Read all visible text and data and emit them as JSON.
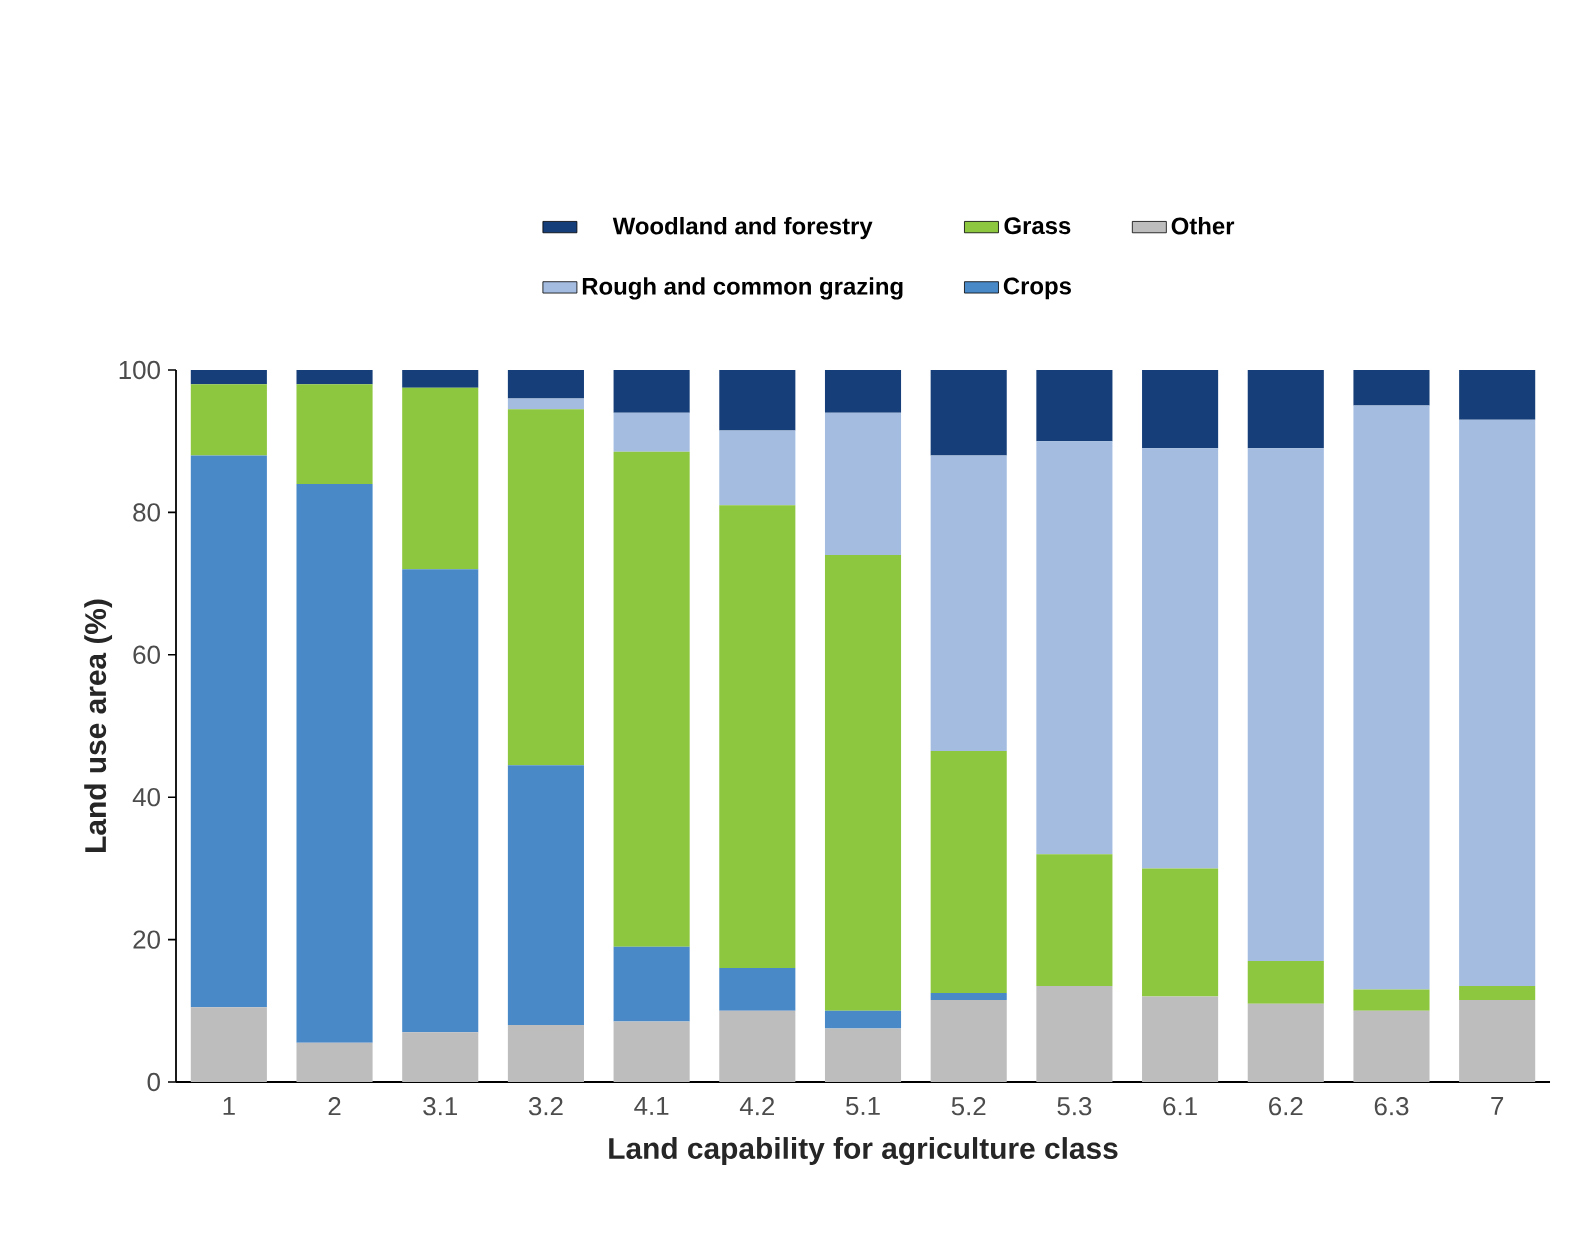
{
  "chart_data": {
    "type": "bar",
    "stacked": true,
    "xlabel": "Land capability for agriculture class",
    "ylabel": "Land use area (%)",
    "categories": [
      "1",
      "2",
      "3.1",
      "3.2",
      "4.1",
      "4.2",
      "5.1",
      "5.2",
      "5.3",
      "6.1",
      "6.2",
      "6.3",
      "7"
    ],
    "series": [
      {
        "name": "Other",
        "color": "#bdbdbd",
        "values": [
          10.5,
          5.5,
          7,
          8,
          8.5,
          10,
          7.5,
          11.5,
          13.5,
          12,
          11,
          10,
          11.5
        ]
      },
      {
        "name": "Crops",
        "color": "#4a89c8",
        "values": [
          77.5,
          78.5,
          65,
          36.5,
          10.5,
          6,
          2.5,
          1,
          0,
          0,
          0,
          0,
          0
        ]
      },
      {
        "name": "Grass",
        "color": "#8dc63f",
        "values": [
          10,
          14,
          25.5,
          50,
          69.5,
          65,
          64,
          34,
          18.5,
          18,
          6,
          3,
          2
        ]
      },
      {
        "name": "Rough and common grazing",
        "color": "#a3bce0",
        "values": [
          0,
          0,
          0,
          1.5,
          5.5,
          10.5,
          20,
          41.5,
          58,
          59,
          72,
          82,
          79.5
        ]
      },
      {
        "name": "Woodland and forestry",
        "color": "#163f7a",
        "values": [
          2,
          2,
          2.5,
          4,
          6,
          8.5,
          6,
          12,
          10,
          11,
          11,
          5,
          7
        ]
      }
    ],
    "ylim": [
      0,
      100
    ],
    "yticks": [
      0,
      20,
      40,
      60,
      80,
      100
    ],
    "grid": false,
    "legend": "top"
  }
}
